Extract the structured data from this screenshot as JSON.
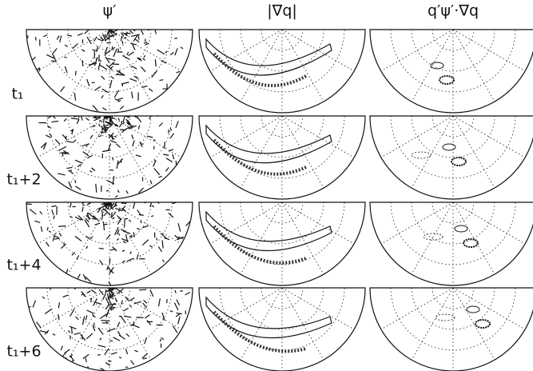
{
  "figure": {
    "column_headers": [
      "ψ′",
      "|∇q|",
      "q′ψ′·∇q"
    ],
    "row_labels": [
      "t₁",
      "t₁+2",
      "t₁+4",
      "t₁+6"
    ]
  }
}
